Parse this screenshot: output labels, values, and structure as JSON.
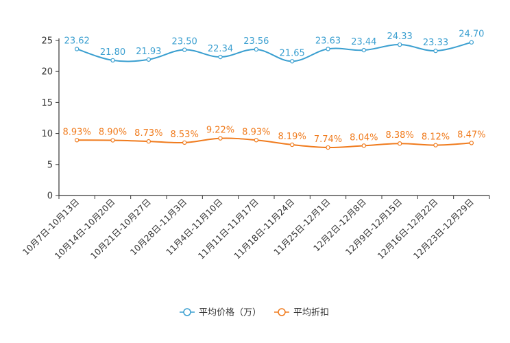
{
  "chart_data": {
    "type": "line",
    "categories": [
      "10月7日-10月13日",
      "10月14日-10月20日",
      "10月21日-10月27日",
      "10月28日-11月3日",
      "11月4日-11月10日",
      "11月11日-11月17日",
      "11月18日-11月24日",
      "11月25日-12月1日",
      "12月2日-12月8日",
      "12月9日-12月15日",
      "12月16日-12月22日",
      "12月23日-12月29日"
    ],
    "series": [
      {
        "name": "平均价格（万）",
        "color": "#3a9fd0",
        "values": [
          23.62,
          21.8,
          21.93,
          23.5,
          22.34,
          23.56,
          21.65,
          23.63,
          23.44,
          24.33,
          23.33,
          24.7
        ],
        "labels": [
          "23.62",
          "21.80",
          "21.93",
          "23.50",
          "22.34",
          "23.56",
          "21.65",
          "23.63",
          "23.44",
          "24.33",
          "23.33",
          "24.70"
        ]
      },
      {
        "name": "平均折扣",
        "color": "#f07b1d",
        "values": [
          8.93,
          8.9,
          8.73,
          8.53,
          9.22,
          8.93,
          8.19,
          7.74,
          8.04,
          8.38,
          8.12,
          8.47
        ],
        "labels": [
          "8.93%",
          "8.90%",
          "8.73%",
          "8.53%",
          "9.22%",
          "8.93%",
          "8.19%",
          "7.74%",
          "8.04%",
          "8.38%",
          "8.12%",
          "8.47%"
        ]
      }
    ],
    "y_ticks": [
      "0",
      "5",
      "10",
      "15",
      "20",
      "25"
    ],
    "ylim": [
      0,
      25
    ],
    "grid": false,
    "legend_position": "bottom-center",
    "title": "",
    "xlabel": "",
    "ylabel": ""
  }
}
